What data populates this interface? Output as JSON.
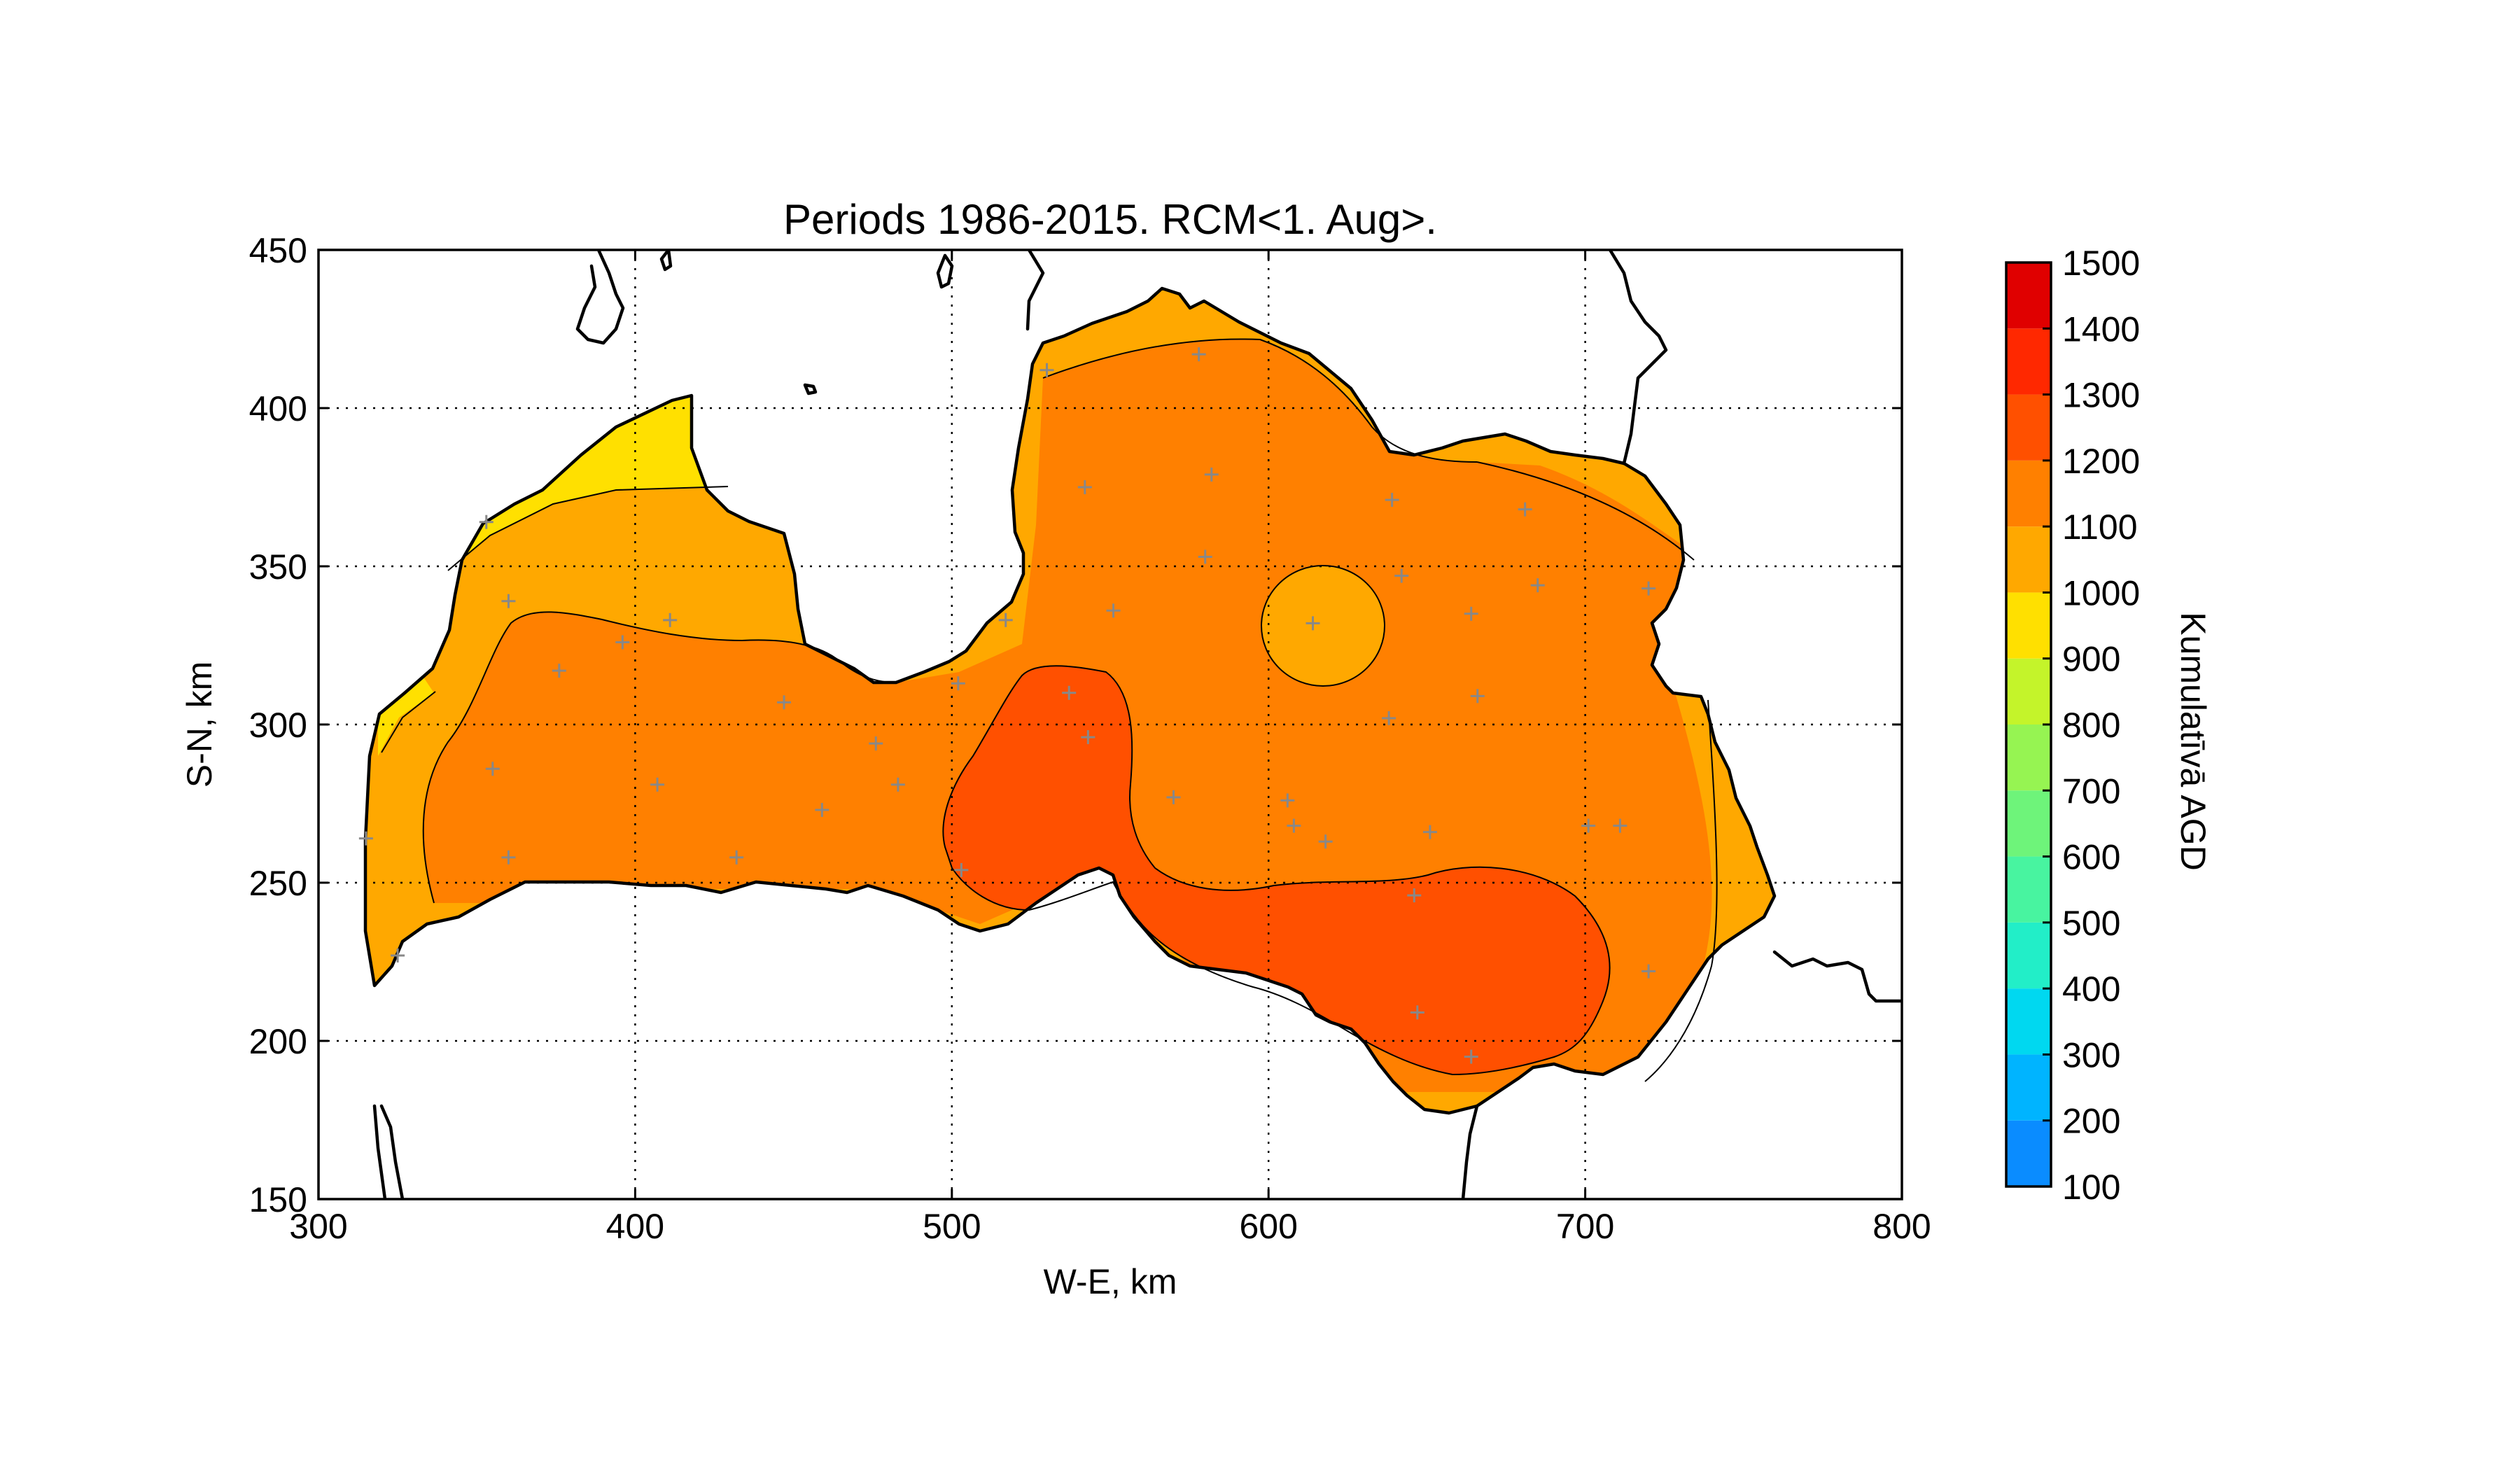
{
  "chart_data": {
    "type": "heatmap",
    "title": "Periods 1986-2015. RCM<1. Aug>.",
    "xlabel": "W-E, km",
    "ylabel": "S-N, km",
    "xlim": [
      300,
      800
    ],
    "ylim": [
      150,
      450
    ],
    "xticks": [
      "300",
      "400",
      "500",
      "600",
      "700",
      "800"
    ],
    "yticks": [
      "150",
      "200",
      "250",
      "300",
      "350",
      "400",
      "450"
    ],
    "grid": true,
    "colorbar": {
      "label": "Kumulatīvā AGD",
      "ticks": [
        "100",
        "200",
        "300",
        "400",
        "500",
        "600",
        "700",
        "800",
        "900",
        "1000",
        "1100",
        "1200",
        "1300",
        "1400",
        "1500"
      ],
      "levels": [
        {
          "range": [
            100,
            200
          ],
          "color": "#0a8cff"
        },
        {
          "range": [
            200,
            300
          ],
          "color": "#00b4ff"
        },
        {
          "range": [
            300,
            400
          ],
          "color": "#00d8f0"
        },
        {
          "range": [
            400,
            500
          ],
          "color": "#22eec8"
        },
        {
          "range": [
            500,
            600
          ],
          "color": "#48f4a0"
        },
        {
          "range": [
            600,
            700
          ],
          "color": "#6ef47a"
        },
        {
          "range": [
            700,
            800
          ],
          "color": "#96f452"
        },
        {
          "range": [
            800,
            900
          ],
          "color": "#c4f42a"
        },
        {
          "range": [
            900,
            1000
          ],
          "color": "#ffe000"
        },
        {
          "range": [
            1000,
            1100
          ],
          "color": "#ffa800"
        },
        {
          "range": [
            1100,
            1200
          ],
          "color": "#ff8000"
        },
        {
          "range": [
            1200,
            1300
          ],
          "color": "#ff5000"
        },
        {
          "range": [
            1300,
            1400
          ],
          "color": "#ff2800"
        },
        {
          "range": [
            1400,
            1500
          ],
          "color": "#e00000"
        }
      ]
    },
    "regions": [
      {
        "level": "900-1000",
        "color": "#ffe000",
        "area": "northwest coast (Kurzeme tip)"
      },
      {
        "level": "1000-1100",
        "color": "#ffa800",
        "area": "coastal rim, north-east and east edges, isolated circle near x=617, y=332"
      },
      {
        "level": "1100-1200",
        "color": "#ff8000",
        "area": "central Latvia"
      },
      {
        "level": "1200-1300",
        "color": "#ff5000",
        "area": "south-central (Zemgale) and south-east (Latgale)"
      }
    ],
    "stations": [
      [
        353,
        364
      ],
      [
        360,
        339
      ],
      [
        376,
        317
      ],
      [
        396,
        326
      ],
      [
        411,
        333
      ],
      [
        355,
        286
      ],
      [
        407,
        281
      ],
      [
        447,
        307
      ],
      [
        459,
        273
      ],
      [
        476,
        294
      ],
      [
        483,
        281
      ],
      [
        432,
        258
      ],
      [
        502,
        313
      ],
      [
        517,
        333
      ],
      [
        530,
        412
      ],
      [
        542,
        375
      ],
      [
        551,
        336
      ],
      [
        537,
        310
      ],
      [
        543,
        296
      ],
      [
        503,
        254
      ],
      [
        570,
        277
      ],
      [
        578,
        417
      ],
      [
        582,
        379
      ],
      [
        580,
        353
      ],
      [
        614,
        332
      ],
      [
        606,
        276
      ],
      [
        608,
        268
      ],
      [
        618,
        263
      ],
      [
        639,
        371
      ],
      [
        642,
        347
      ],
      [
        638,
        302
      ],
      [
        651,
        266
      ],
      [
        664,
        335
      ],
      [
        666,
        309
      ],
      [
        681,
        368
      ],
      [
        685,
        344
      ],
      [
        701,
        268
      ],
      [
        711,
        268
      ],
      [
        720,
        343
      ],
      [
        720,
        222
      ],
      [
        646,
        246
      ],
      [
        647,
        209
      ],
      [
        664,
        195
      ],
      [
        315,
        264
      ],
      [
        325,
        227
      ],
      [
        360,
        258
      ]
    ]
  }
}
